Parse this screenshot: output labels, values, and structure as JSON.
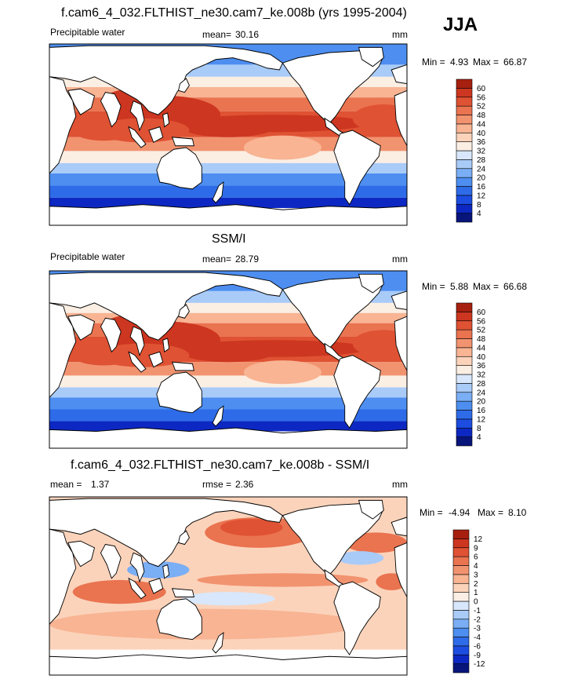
{
  "season": "JJA",
  "colors": {
    "coast": "#000000",
    "land": "#ffffff",
    "positive_scale": [
      "#08157a",
      "#0d28c2",
      "#1c4de0",
      "#2e6be8",
      "#4d8ef0",
      "#7aaef5",
      "#a9cbf8",
      "#d8e7fb",
      "#fbeee3",
      "#fbd3bb",
      "#f8b493",
      "#f29370",
      "#ea7350",
      "#df5233",
      "#cd3620",
      "#a7200f"
    ],
    "diff_scale": [
      "#08157a",
      "#0d28c2",
      "#1c4de0",
      "#2e6be8",
      "#4d8ef0",
      "#7aaef5",
      "#a9cbf8",
      "#d8e7fb",
      "#fbeee3",
      "#fbd3bb",
      "#f8b493",
      "#f29370",
      "#ea7350",
      "#df5233",
      "#cd3620",
      "#a7200f"
    ]
  },
  "chart_data": [
    {
      "type": "heatmap",
      "title": "f.cam6_4_032.FLTHIST_ne30.cam7_ke.008b (yrs 1995-2004)",
      "variable": "Precipitable water",
      "mean_label": "mean=",
      "mean": "30.16",
      "units": "mm",
      "min_label": "Min =",
      "min": "4.93",
      "max_label": "Max =",
      "max": "66.87",
      "contour_levels": [
        "4",
        "8",
        "12",
        "16",
        "20",
        "24",
        "28",
        "32",
        "36",
        "40",
        "44",
        "48",
        "52",
        "56",
        "60"
      ],
      "global_mean": 30.16
    },
    {
      "type": "heatmap",
      "title": "SSM/I",
      "variable": "Precipitable water",
      "mean_label": "mean=",
      "mean": "28.79",
      "units": "mm",
      "min_label": "Min =",
      "min": "5.88",
      "max_label": "Max =",
      "max": "66.68",
      "contour_levels": [
        "4",
        "8",
        "12",
        "16",
        "20",
        "24",
        "28",
        "32",
        "36",
        "40",
        "44",
        "48",
        "52",
        "56",
        "60"
      ],
      "global_mean": 28.79
    },
    {
      "type": "heatmap",
      "title": "f.cam6_4_032.FLTHIST_ne30.cam7_ke.008b - SSM/I",
      "mean_label": "mean =",
      "mean": "1.37",
      "rmse_label": "rmse =",
      "rmse": "2.36",
      "units": "mm",
      "min_label": "Min =",
      "min": "-4.94",
      "max_label": "Max =",
      "max": "8.10",
      "contour_levels": [
        "-12",
        "-9",
        "-6",
        "-4",
        "-3",
        "-2",
        "-1",
        "0",
        "1",
        "2",
        "3",
        "4",
        "6",
        "9",
        "12"
      ],
      "global_mean": 1.37
    }
  ]
}
